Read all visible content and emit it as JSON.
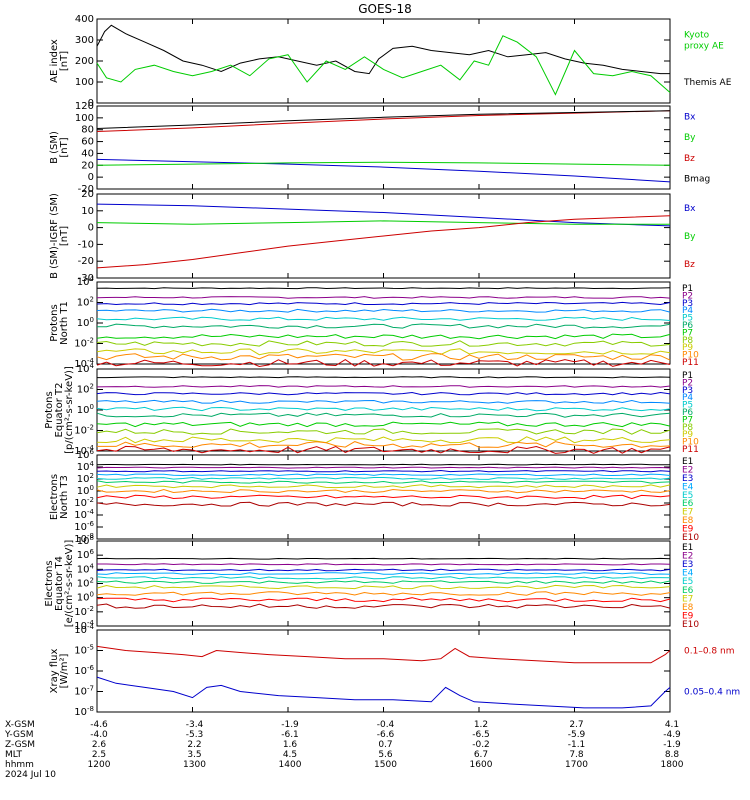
{
  "chart_data": {
    "title": "GOES-18",
    "type": "line",
    "time_axis": {
      "unit": "hhmm",
      "ticks": [
        "1200",
        "1300",
        "1400",
        "1500",
        "1600",
        "1700",
        "1800"
      ],
      "rows": [
        {
          "name": "X-GSM",
          "values": [
            "-4.6",
            "-3.4",
            "-1.9",
            "-0.4",
            "1.2",
            "2.7",
            "4.1"
          ]
        },
        {
          "name": "Y-GSM",
          "values": [
            "-4.0",
            "-5.3",
            "-6.1",
            "-6.6",
            "-6.5",
            "-5.9",
            "-4.9"
          ]
        },
        {
          "name": "Z-GSM",
          "values": [
            "2.6",
            "2.2",
            "1.6",
            "0.7",
            "-0.2",
            "-1.1",
            "-1.9"
          ]
        },
        {
          "name": "MLT",
          "values": [
            "2.5",
            "3.5",
            "4.5",
            "5.6",
            "6.7",
            "7.8",
            "8.8"
          ]
        },
        {
          "name": "hhmm",
          "values": [
            "1200",
            "1300",
            "1400",
            "1500",
            "1600",
            "1700",
            "1800"
          ]
        }
      ],
      "date": "2024 Jul 10"
    },
    "panels": [
      {
        "id": "ae",
        "ylabel": [
          "AE index",
          "[nT]"
        ],
        "ylim": [
          0,
          400
        ],
        "yticks": [
          "0",
          "100",
          "200",
          "300",
          "400"
        ],
        "legend": [
          {
            "name": "Kyoto\nproxy AE",
            "color": "#00cc00"
          },
          {
            "name": "Themis AE",
            "color": "#000000"
          }
        ],
        "series": [
          {
            "name": "Themis AE",
            "color": "#000000",
            "x": [
              12.0,
              12.08,
              12.15,
              12.3,
              12.5,
              12.7,
              12.9,
              13.1,
              13.3,
              13.5,
              13.7,
              13.9,
              14.1,
              14.3,
              14.5,
              14.7,
              14.85,
              14.95,
              15.1,
              15.3,
              15.5,
              15.7,
              15.9,
              16.1,
              16.3,
              16.5,
              16.7,
              16.9,
              17.1,
              17.3,
              17.5,
              17.7,
              17.9,
              18.0
            ],
            "y": [
              270,
              340,
              370,
              330,
              290,
              250,
              200,
              180,
              150,
              190,
              210,
              220,
              200,
              180,
              200,
              150,
              140,
              210,
              260,
              270,
              250,
              240,
              230,
              250,
              220,
              230,
              240,
              210,
              190,
              180,
              160,
              150,
              140,
              140
            ]
          },
          {
            "name": "Kyoto proxy AE",
            "color": "#00cc00",
            "x": [
              12.0,
              12.1,
              12.25,
              12.4,
              12.6,
              12.8,
              13.0,
              13.2,
              13.4,
              13.6,
              13.8,
              14.0,
              14.2,
              14.4,
              14.6,
              14.8,
              15.0,
              15.2,
              15.4,
              15.6,
              15.8,
              15.95,
              16.1,
              16.25,
              16.4,
              16.6,
              16.8,
              17.0,
              17.2,
              17.4,
              17.6,
              17.8,
              18.0
            ],
            "y": [
              190,
              120,
              100,
              160,
              180,
              150,
              130,
              150,
              180,
              130,
              210,
              230,
              100,
              200,
              160,
              220,
              160,
              120,
              150,
              180,
              110,
              200,
              180,
              320,
              290,
              220,
              40,
              250,
              140,
              130,
              150,
              130,
              50
            ]
          }
        ]
      },
      {
        "id": "bsm",
        "ylabel": [
          "B (SM)",
          "[nT]"
        ],
        "ylim": [
          -20,
          120
        ],
        "yticks": [
          "-20",
          "0",
          "20",
          "40",
          "60",
          "80",
          "100",
          "120"
        ],
        "legend": [
          {
            "name": "Bx",
            "color": "#0000cc"
          },
          {
            "name": "By",
            "color": "#00cc00"
          },
          {
            "name": "Bz",
            "color": "#cc0000"
          },
          {
            "name": "Bmag",
            "color": "#000000"
          }
        ],
        "series": [
          {
            "name": "Bx",
            "color": "#0000cc",
            "x": [
              12,
              13,
              14,
              15,
              16,
              17,
              18
            ],
            "y": [
              30,
              26,
              22,
              17,
              10,
              2,
              -8
            ]
          },
          {
            "name": "By",
            "color": "#00cc00",
            "x": [
              12,
              13,
              14,
              15,
              16,
              17,
              18
            ],
            "y": [
              20,
              22,
              24,
              25,
              24,
              22,
              20
            ]
          },
          {
            "name": "Bz",
            "color": "#cc0000",
            "x": [
              12,
              13,
              14,
              15,
              16,
              17,
              18
            ],
            "y": [
              77,
              83,
              91,
              98,
              104,
              108,
              112
            ]
          },
          {
            "name": "Bmag",
            "color": "#000000",
            "x": [
              12,
              13,
              14,
              15,
              16,
              17,
              18
            ],
            "y": [
              82,
              88,
              95,
              101,
              106,
              109,
              112
            ]
          }
        ]
      },
      {
        "id": "bigrf",
        "ylabel": [
          "B (SM)-IGRF (SM)",
          "[nT]"
        ],
        "ylim": [
          -30,
          20
        ],
        "yticks": [
          "-30",
          "-20",
          "-10",
          "0",
          "10",
          "20"
        ],
        "legend": [
          {
            "name": "Bx",
            "color": "#0000cc"
          },
          {
            "name": "By",
            "color": "#00cc00"
          },
          {
            "name": "Bz",
            "color": "#cc0000"
          }
        ],
        "series": [
          {
            "name": "Bx",
            "color": "#0000cc",
            "x": [
              12,
              13,
              14,
              15,
              16,
              17,
              18
            ],
            "y": [
              14,
              13,
              11,
              9,
              6,
              3,
              1
            ]
          },
          {
            "name": "By",
            "color": "#00cc00",
            "x": [
              12,
              13,
              14,
              15,
              16,
              17,
              18
            ],
            "y": [
              3,
              2,
              3,
              4,
              3,
              2,
              2
            ]
          },
          {
            "name": "Bz",
            "color": "#cc0000",
            "x": [
              12,
              12.5,
              13,
              13.5,
              14,
              14.5,
              15,
              15.5,
              16,
              16.5,
              17,
              17.5,
              18
            ],
            "y": [
              -24,
              -22,
              -19,
              -15,
              -11,
              -8,
              -5,
              -2,
              0,
              3,
              5,
              6,
              7
            ]
          }
        ]
      },
      {
        "id": "pn",
        "ylabel": [
          "Protons",
          "North T1"
        ],
        "log": true,
        "ylim": [
          -4,
          4
        ],
        "yticks": [
          "10^-4",
          "10^-2",
          "10^0",
          "10^2",
          "10^4"
        ],
        "channels": [
          "P1",
          "P2",
          "P3",
          "P4",
          "P5",
          "P6",
          "P7",
          "P8",
          "P9",
          "P10",
          "P11"
        ],
        "levels": [
          3.4,
          2.5,
          1.9,
          1.2,
          0.4,
          -0.3,
          -1.3,
          -2.0,
          -2.8,
          -3.3,
          -3.9
        ],
        "colors": [
          "#000000",
          "#8b008b",
          "#0000cc",
          "#0088ff",
          "#00cccc",
          "#00aa66",
          "#00cc00",
          "#88cc00",
          "#cccc00",
          "#ff8800",
          "#cc0000"
        ]
      },
      {
        "id": "pe",
        "ylabel": [
          "Protons",
          "Equator T2",
          "[p/(cm²-s-sr-keV)]"
        ],
        "log": true,
        "ylim": [
          -4,
          4
        ],
        "yticks": [
          "10^-4",
          "10^-2",
          "10^0",
          "10^2",
          "10^4"
        ],
        "channels": [
          "P1",
          "P2",
          "P3",
          "P4",
          "P5",
          "P6",
          "P7",
          "P8",
          "P9",
          "P10",
          "P11"
        ],
        "levels": [
          3.2,
          2.3,
          1.6,
          0.8,
          0.1,
          -0.5,
          -1.4,
          -2.1,
          -2.9,
          -3.4,
          -3.9
        ],
        "colors": [
          "#000000",
          "#8b008b",
          "#0000cc",
          "#0088ff",
          "#00cccc",
          "#00aa66",
          "#00cc00",
          "#88cc00",
          "#cccc00",
          "#ff8800",
          "#cc0000"
        ]
      },
      {
        "id": "en",
        "ylabel": [
          "Electrons",
          "North T3"
        ],
        "log": true,
        "ylim": [
          -8,
          6
        ],
        "yticks": [
          "10^-8",
          "10^-6",
          "10^-4",
          "10^-2",
          "10^0",
          "10^2",
          "10^4",
          "10^6"
        ],
        "channels": [
          "E1",
          "E2",
          "E3",
          "E4",
          "E5",
          "E6",
          "E7",
          "E8",
          "E9",
          "E10"
        ],
        "levels": [
          4.4,
          3.9,
          3.3,
          2.7,
          2.1,
          1.5,
          0.8,
          0.0,
          -1.0,
          -2.2
        ],
        "colors": [
          "#000000",
          "#8b008b",
          "#0000cc",
          "#00aaff",
          "#00cccc",
          "#00cc66",
          "#cccc00",
          "#ff8800",
          "#ff0000",
          "#aa0000"
        ]
      },
      {
        "id": "ee",
        "ylabel": [
          "Electrons",
          "Equator T4",
          "[e/(cm²-s-sr-keV)]"
        ],
        "log": true,
        "ylim": [
          -4,
          8
        ],
        "yticks": [
          "10^-4",
          "10^-2",
          "10^0",
          "10^2",
          "10^4",
          "10^6",
          "10^8"
        ],
        "channels": [
          "E1",
          "E2",
          "E3",
          "E4",
          "E5",
          "E6",
          "E7",
          "E8",
          "E9",
          "E10"
        ],
        "levels": [
          5.5,
          4.7,
          3.9,
          3.4,
          2.8,
          2.2,
          1.5,
          0.6,
          -0.3,
          -1.2
        ],
        "colors": [
          "#000000",
          "#8b008b",
          "#0000cc",
          "#00aaff",
          "#00cccc",
          "#00cc66",
          "#cccc00",
          "#ff8800",
          "#ff0000",
          "#aa0000"
        ]
      },
      {
        "id": "xray",
        "ylabel": [
          "Xray flux",
          "[W/m²]"
        ],
        "log": true,
        "ylim": [
          -8,
          -4
        ],
        "yticks": [
          "10^-8",
          "10^-7",
          "10^-6",
          "10^-5",
          "10^-4"
        ],
        "legend": [
          {
            "name": "0.1–0.8 nm",
            "color": "#cc0000"
          },
          {
            "name": "0.05–0.4 nm",
            "color": "#0000cc"
          }
        ],
        "series": [
          {
            "name": "0.1-0.8 nm",
            "color": "#cc0000",
            "x": [
              12,
              12.3,
              12.6,
              12.9,
              13.1,
              13.25,
              13.5,
              13.8,
              14.2,
              14.6,
              15.0,
              15.4,
              15.6,
              15.75,
              15.9,
              16.2,
              16.6,
              17.0,
              17.4,
              17.8,
              17.95,
              18.0
            ],
            "y": [
              -4.8,
              -5.0,
              -5.1,
              -5.2,
              -5.3,
              -5.0,
              -5.1,
              -5.2,
              -5.3,
              -5.4,
              -5.4,
              -5.5,
              -5.4,
              -4.9,
              -5.3,
              -5.4,
              -5.5,
              -5.6,
              -5.6,
              -5.6,
              -5.2,
              -5.0
            ]
          },
          {
            "name": "0.05-0.4 nm",
            "color": "#0000cc",
            "x": [
              12,
              12.2,
              12.5,
              12.8,
              13.0,
              13.15,
              13.3,
              13.5,
              13.9,
              14.3,
              14.7,
              15.1,
              15.5,
              15.65,
              15.8,
              15.95,
              16.3,
              16.7,
              17.1,
              17.5,
              17.8,
              17.95,
              18.0
            ],
            "y": [
              -6.3,
              -6.6,
              -6.8,
              -7.0,
              -7.3,
              -6.8,
              -6.7,
              -7.0,
              -7.2,
              -7.3,
              -7.4,
              -7.4,
              -7.5,
              -6.8,
              -7.2,
              -7.5,
              -7.6,
              -7.7,
              -7.8,
              -7.8,
              -7.7,
              -7.0,
              -6.8
            ]
          }
        ]
      }
    ]
  }
}
